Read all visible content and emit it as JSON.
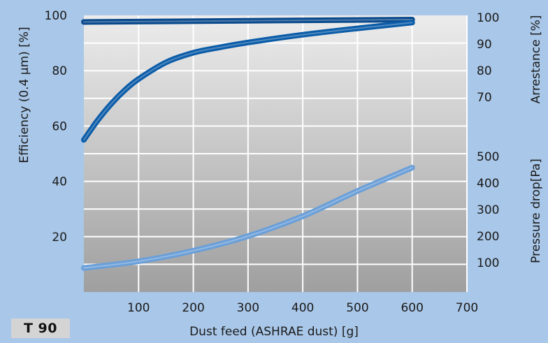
{
  "product_label": "T 90",
  "colors": {
    "background": "#a9c7e8",
    "plot_top": "#ececec",
    "plot_bottom": "#9f9f9f",
    "dark_blue": "#0a4a8c",
    "mid_blue": "#0b5ca8",
    "light_blue": "#6a9fd8"
  },
  "chart_data": {
    "type": "line",
    "xlabel": "Dust feed (ASHRAE dust) [g]",
    "x_ticks": [
      "100",
      "200",
      "300",
      "400",
      "500",
      "600",
      "700"
    ],
    "xlim": [
      0,
      700
    ],
    "grid": true,
    "axes": {
      "left": {
        "label": "Efficiency (0.4 µm) [%]",
        "ticks": [
          "20",
          "40",
          "60",
          "80",
          "100"
        ],
        "range": [
          0,
          100
        ]
      },
      "right_top": {
        "label": "Arrestance [%]",
        "ticks": [
          "70",
          "80",
          "90",
          "100"
        ],
        "range": [
          60,
          100
        ]
      },
      "right_bottom": {
        "label": "Pressure drop[Pa]",
        "ticks": [
          "100",
          "200",
          "300",
          "400",
          "500"
        ],
        "range": [
          0,
          600
        ]
      }
    },
    "series": [
      {
        "axis": "right_top",
        "color": "#0a4a8c",
        "x": [
          0,
          600
        ],
        "y": [
          98.3,
          99.2
        ]
      },
      {
        "axis": "left",
        "color": "#0b5ca8",
        "x": [
          0,
          25,
          50,
          75,
          100,
          150,
          200,
          250,
          300,
          400,
          500,
          600
        ],
        "y": [
          55,
          62,
          68,
          73,
          77,
          83,
          86.5,
          88.5,
          90.2,
          93,
          95.3,
          97.4
        ]
      },
      {
        "axis": "right_bottom",
        "color": "#6a9fd8",
        "x": [
          0,
          100,
          200,
          300,
          400,
          500,
          600
        ],
        "y": [
          80,
          105,
          145,
          200,
          275,
          370,
          458
        ]
      }
    ]
  }
}
